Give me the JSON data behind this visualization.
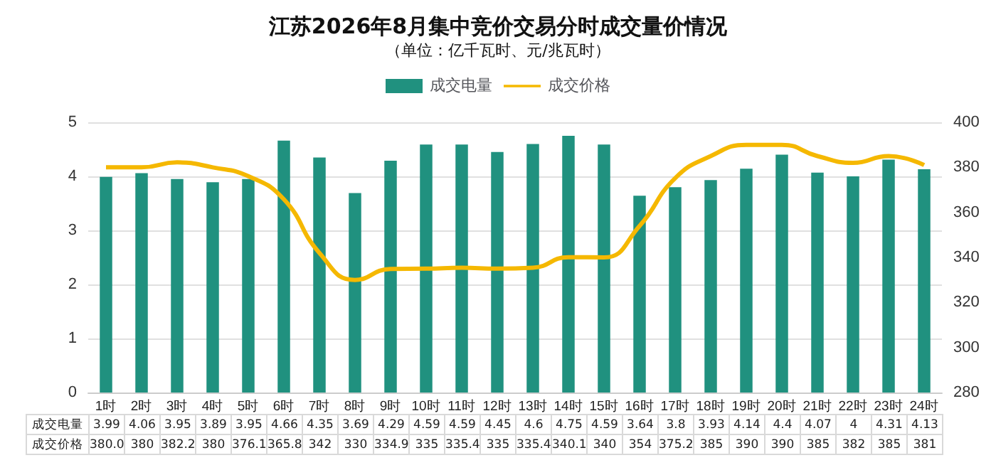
{
  "chart_data": {
    "type": "bar",
    "title": "江苏2026年8月集中竞价交易分时成交量价情况",
    "subtitle": "（单位：亿千瓦时、元/兆瓦时）",
    "categories": [
      "1时",
      "2时",
      "3时",
      "4时",
      "5时",
      "6时",
      "7时",
      "8时",
      "9时",
      "10时",
      "11时",
      "12时",
      "13时",
      "14时",
      "15时",
      "16时",
      "17时",
      "18时",
      "19时",
      "20时",
      "21时",
      "22时",
      "23时",
      "24时"
    ],
    "series": [
      {
        "name": "成交电量",
        "color": "#20917f",
        "values": [
          3.99,
          4.06,
          3.95,
          3.89,
          3.95,
          4.66,
          4.35,
          3.69,
          4.29,
          4.59,
          4.59,
          4.45,
          4.6,
          4.75,
          4.59,
          3.64,
          3.8,
          3.93,
          4.14,
          4.4,
          4.07,
          4,
          4.31,
          4.13
        ],
        "value_labels": [
          "3.99",
          "4.06",
          "3.95",
          "3.89",
          "3.95",
          "4.66",
          "4.35",
          "3.69",
          "4.29",
          "4.59",
          "4.59",
          "4.45",
          "4.6",
          "4.75",
          "4.59",
          "3.64",
          "3.8",
          "3.93",
          "4.14",
          "4.4",
          "4.07",
          "4",
          "4.31",
          "4.13"
        ]
      },
      {
        "name": "成交价格",
        "type": "line",
        "axis": "y2",
        "color": "#f5b800",
        "values": [
          380.0,
          380,
          382.2,
          380,
          376.1,
          365.8,
          342,
          330,
          334.9,
          335,
          335.4,
          335,
          335.4,
          340.1,
          340,
          354,
          375.2,
          385,
          390,
          390,
          385,
          382,
          385,
          381
        ],
        "value_labels": [
          "380.0",
          "380",
          "382.2",
          "380",
          "376.1",
          "365.8",
          "342",
          "330",
          "334.9",
          "335",
          "335.4",
          "335",
          "335.4",
          "340.1",
          "340",
          "354",
          "375.2",
          "385",
          "390",
          "390",
          "385",
          "382",
          "385",
          "381"
        ]
      }
    ],
    "ylim": [
      0,
      5
    ],
    "yticks": [
      0,
      1,
      2,
      3,
      4,
      5
    ],
    "y2lim": [
      280,
      400
    ],
    "y2ticks": [
      280,
      300,
      320,
      340,
      360,
      380,
      400
    ],
    "grid": "y",
    "legend": "top",
    "marker": "none"
  }
}
